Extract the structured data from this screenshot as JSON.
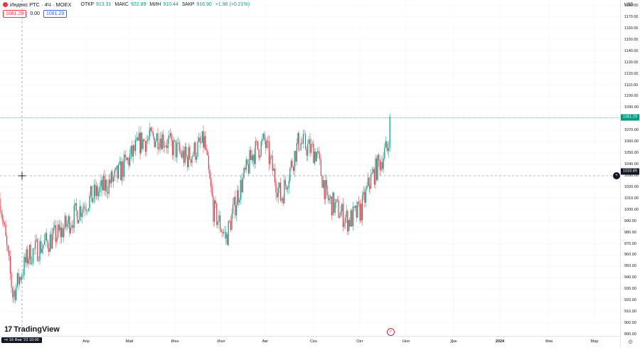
{
  "legend": {
    "title": "Индекс РТС · 4Ч · MOEX",
    "open_label": "ОТКР",
    "open": "913.31",
    "high_label": "МАКС",
    "high": "922.89",
    "low_label": "МИН",
    "low": "910.44",
    "close_label": "ЗАКР",
    "close": "916.90",
    "change": "+1.96 (+0.21%)"
  },
  "badges": {
    "sell": "1081.29",
    "spread": "0.00",
    "buy": "1081.29"
  },
  "y_axis": {
    "currency": "USD",
    "ticks": [
      "1180.00",
      "1170.00",
      "1160.00",
      "1150.00",
      "1140.00",
      "1130.00",
      "1120.00",
      "1110.00",
      "1100.00",
      "1090.00",
      "1080.00",
      "1070.00",
      "1060.00",
      "1050.00",
      "1040.00",
      "1030.00",
      "1020.00",
      "1010.00",
      "1000.00",
      "990.00",
      "980.00",
      "970.00",
      "960.00",
      "950.00",
      "940.00",
      "930.00",
      "920.00",
      "910.00",
      "900.00",
      "890.00"
    ],
    "last_price": "1081.29",
    "crosshair_price": "1033.89"
  },
  "x_axis": {
    "ticks": [
      "Апр",
      "Май",
      "Июн",
      "Июл",
      "Авг",
      "Сен",
      "Окт",
      "Ноя",
      "Дек",
      "2024",
      "Фев",
      "Мар"
    ],
    "crosshair_date": "чт 16 Фев '23   10:00"
  },
  "branding": {
    "logo_text": "TradingView",
    "logo_mark": "17"
  },
  "colors": {
    "up": "#089981",
    "down": "#f23645",
    "crosshair": "#787b86",
    "grid": "#f0f3fa"
  },
  "chart_data": {
    "type": "candlestick",
    "instrument": "Индекс РТС",
    "interval": "4Ч",
    "ylim": [
      890,
      1180
    ],
    "anchors": [
      [
        "Фев",
        1010
      ],
      [
        "Мар",
        925
      ],
      [
        "Мар",
        960
      ],
      [
        "Апр",
        980
      ],
      [
        "Апр",
        1005
      ],
      [
        "Май",
        1030
      ],
      [
        "Май",
        1060
      ],
      [
        "Июн",
        1065
      ],
      [
        "Июн",
        1045
      ],
      [
        "Июн",
        1060
      ],
      [
        "Июл",
        1000
      ],
      [
        "Июл",
        975
      ],
      [
        "Июл",
        1015
      ],
      [
        "Авг",
        1050
      ],
      [
        "Авг",
        1060
      ],
      [
        "Авг",
        1010
      ],
      [
        "Сен",
        1060
      ],
      [
        "Сен",
        1050
      ],
      [
        "Сен",
        1010
      ],
      [
        "Окт",
        990
      ],
      [
        "Окт",
        1000
      ],
      [
        "Окт",
        1025
      ],
      [
        "Окт",
        1055
      ],
      [
        "Окт",
        1081.29
      ]
    ]
  }
}
